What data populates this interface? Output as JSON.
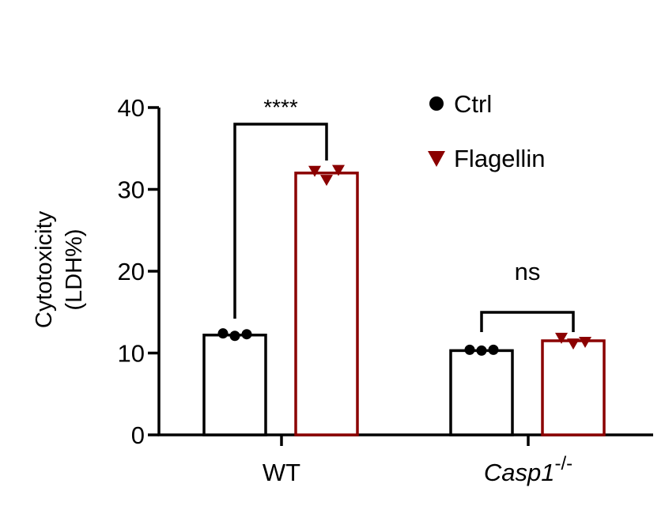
{
  "chart_data": {
    "type": "bar",
    "categories": [
      "WT",
      "Casp1"
    ],
    "category_superscript": [
      "",
      "-/-"
    ],
    "category_italic": [
      false,
      true
    ],
    "ylabel_line1": "Cytotoxicity",
    "ylabel_line2": "(LDH%)",
    "ylim": [
      0,
      40
    ],
    "yticks": [
      0,
      10,
      20,
      30,
      40
    ],
    "grid": false,
    "legend_position": "top-right",
    "series": [
      {
        "name": "Ctrl",
        "marker": "circle",
        "color": "#000000",
        "values": [
          12.2,
          10.3
        ],
        "points": [
          [
            12.4,
            12.1,
            12.3
          ],
          [
            10.4,
            10.3,
            10.4
          ]
        ]
      },
      {
        "name": "Flagellin",
        "marker": "triangle-down",
        "color": "#8b0000",
        "values": [
          32.0,
          11.5
        ],
        "points": [
          [
            32.3,
            31.2,
            32.4
          ],
          [
            11.9,
            11.2,
            11.4
          ]
        ]
      }
    ],
    "annotations": [
      {
        "category_index": 0,
        "text": "****"
      },
      {
        "category_index": 1,
        "text": "ns"
      }
    ]
  }
}
